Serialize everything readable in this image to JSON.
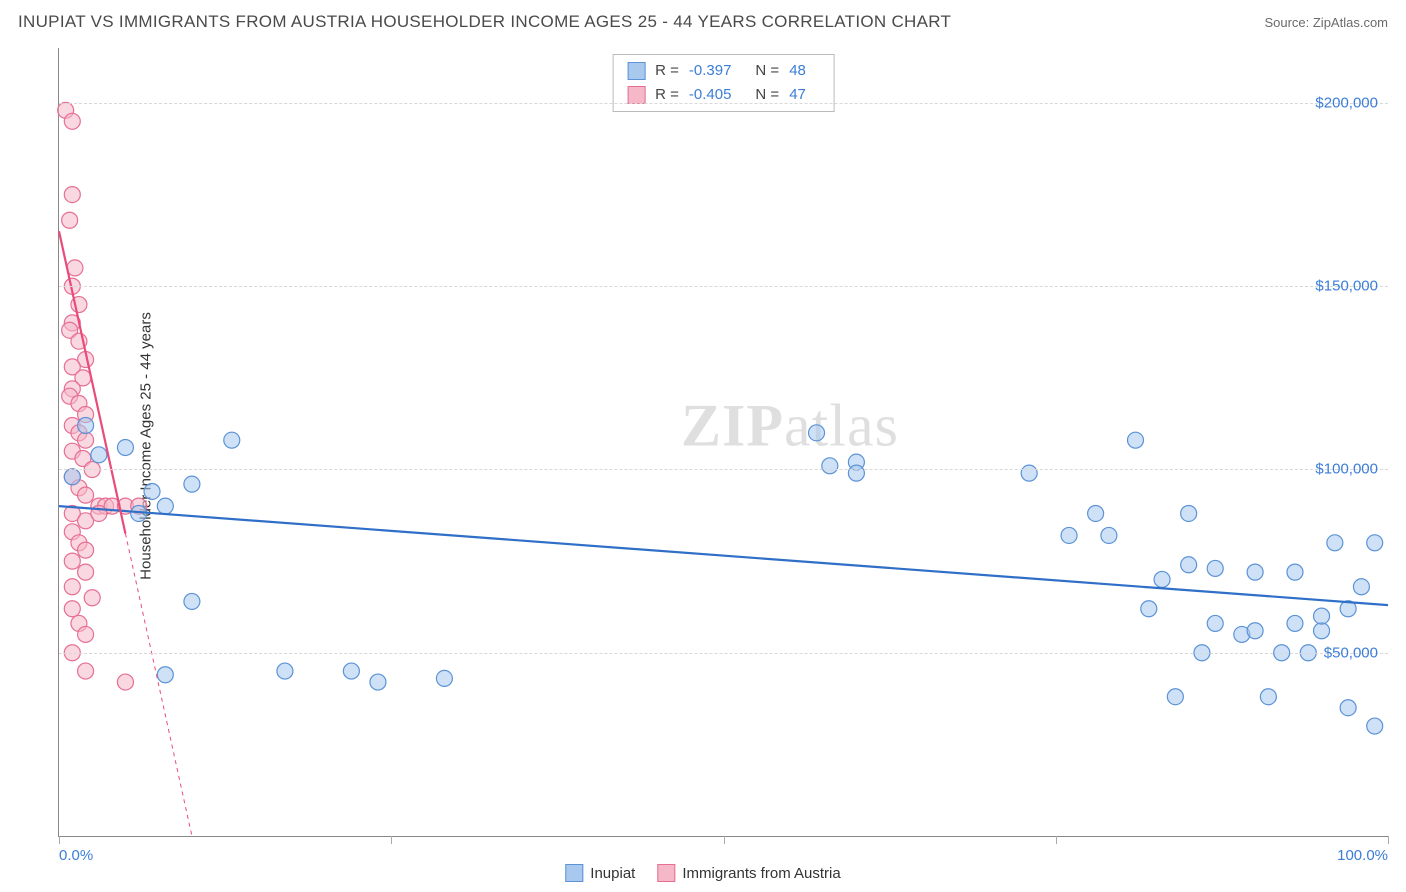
{
  "title": "INUPIAT VS IMMIGRANTS FROM AUSTRIA HOUSEHOLDER INCOME AGES 25 - 44 YEARS CORRELATION CHART",
  "source": "Source: ZipAtlas.com",
  "ylabel": "Householder Income Ages 25 - 44 years",
  "watermark_a": "ZIP",
  "watermark_b": "atlas",
  "chart": {
    "type": "scatter",
    "xlim": [
      0,
      100
    ],
    "ylim": [
      0,
      215000
    ],
    "x_ticks": [
      0,
      25,
      50,
      75,
      100
    ],
    "x_tick_labels": {
      "0": "0.0%",
      "100": "100.0%"
    },
    "y_gridlines": [
      50000,
      100000,
      150000,
      200000
    ],
    "y_tick_labels": {
      "50000": "$50,000",
      "100000": "$100,000",
      "150000": "$150,000",
      "200000": "$200,000"
    },
    "grid_color": "#d8d8d8",
    "background_color": "#ffffff",
    "axis_color": "#888888",
    "label_color": "#3b7dd8",
    "marker_radius": 8,
    "marker_opacity": 0.55,
    "series": [
      {
        "name": "Inupiat",
        "color_fill": "#a8c8ee",
        "color_stroke": "#5b93d6",
        "line_color": "#2f6fc7",
        "line_width": 2.2,
        "R": "-0.397",
        "N": "48",
        "trend": {
          "x1": 0,
          "y1": 90000,
          "x2": 100,
          "y2": 63000
        },
        "points": [
          [
            1,
            98000
          ],
          [
            2,
            112000
          ],
          [
            3,
            104000
          ],
          [
            5,
            106000
          ],
          [
            6,
            88000
          ],
          [
            7,
            94000
          ],
          [
            8,
            90000
          ],
          [
            10,
            96000
          ],
          [
            13,
            108000
          ],
          [
            8,
            44000
          ],
          [
            10,
            64000
          ],
          [
            17,
            45000
          ],
          [
            22,
            45000
          ],
          [
            24,
            42000
          ],
          [
            29,
            43000
          ],
          [
            57,
            110000
          ],
          [
            58,
            101000
          ],
          [
            60,
            102000
          ],
          [
            60,
            99000
          ],
          [
            73,
            99000
          ],
          [
            76,
            82000
          ],
          [
            78,
            88000
          ],
          [
            79,
            82000
          ],
          [
            81,
            108000
          ],
          [
            82,
            62000
          ],
          [
            83,
            70000
          ],
          [
            84,
            38000
          ],
          [
            85,
            88000
          ],
          [
            85,
            74000
          ],
          [
            86,
            50000
          ],
          [
            87,
            73000
          ],
          [
            87,
            58000
          ],
          [
            89,
            55000
          ],
          [
            90,
            56000
          ],
          [
            90,
            72000
          ],
          [
            91,
            38000
          ],
          [
            92,
            50000
          ],
          [
            93,
            58000
          ],
          [
            93,
            72000
          ],
          [
            94,
            50000
          ],
          [
            95,
            56000
          ],
          [
            95,
            60000
          ],
          [
            96,
            80000
          ],
          [
            97,
            62000
          ],
          [
            97,
            35000
          ],
          [
            98,
            68000
          ],
          [
            99,
            80000
          ],
          [
            99,
            30000
          ]
        ]
      },
      {
        "name": "Immigrants from Austria",
        "color_fill": "#f6b8c8",
        "color_stroke": "#e66f93",
        "line_color": "#e94b7a",
        "line_width": 2.2,
        "R": "-0.405",
        "N": "47",
        "trend": {
          "x1": 0,
          "y1": 165000,
          "x2": 10,
          "y2": 0
        },
        "points": [
          [
            0.5,
            198000
          ],
          [
            1,
            195000
          ],
          [
            1,
            175000
          ],
          [
            0.8,
            168000
          ],
          [
            1.2,
            155000
          ],
          [
            1,
            150000
          ],
          [
            1.5,
            145000
          ],
          [
            1,
            140000
          ],
          [
            0.8,
            138000
          ],
          [
            1.5,
            135000
          ],
          [
            2,
            130000
          ],
          [
            1,
            128000
          ],
          [
            1.8,
            125000
          ],
          [
            1,
            122000
          ],
          [
            0.8,
            120000
          ],
          [
            1.5,
            118000
          ],
          [
            2,
            115000
          ],
          [
            1,
            112000
          ],
          [
            1.5,
            110000
          ],
          [
            2,
            108000
          ],
          [
            1,
            105000
          ],
          [
            1.8,
            103000
          ],
          [
            2.5,
            100000
          ],
          [
            1,
            98000
          ],
          [
            1.5,
            95000
          ],
          [
            2,
            93000
          ],
          [
            3,
            90000
          ],
          [
            1,
            88000
          ],
          [
            2,
            86000
          ],
          [
            3.5,
            90000
          ],
          [
            4,
            90000
          ],
          [
            1,
            83000
          ],
          [
            1.5,
            80000
          ],
          [
            2,
            78000
          ],
          [
            3,
            88000
          ],
          [
            1,
            75000
          ],
          [
            2,
            72000
          ],
          [
            1,
            68000
          ],
          [
            2.5,
            65000
          ],
          [
            1,
            62000
          ],
          [
            5,
            90000
          ],
          [
            6,
            90000
          ],
          [
            1.5,
            58000
          ],
          [
            2,
            55000
          ],
          [
            1,
            50000
          ],
          [
            5,
            42000
          ],
          [
            2,
            45000
          ]
        ]
      }
    ]
  },
  "stats_box": {
    "rows": [
      {
        "swatch_fill": "#a8c8ee",
        "swatch_stroke": "#5b93d6",
        "R": "-0.397",
        "N": "48"
      },
      {
        "swatch_fill": "#f6b8c8",
        "swatch_stroke": "#e66f93",
        "R": "-0.405",
        "N": "47"
      }
    ],
    "label_R": "R =",
    "label_N": "N ="
  },
  "legend": {
    "items": [
      {
        "swatch_fill": "#a8c8ee",
        "swatch_stroke": "#5b93d6",
        "label": "Inupiat"
      },
      {
        "swatch_fill": "#f6b8c8",
        "swatch_stroke": "#e66f93",
        "label": "Immigrants from Austria"
      }
    ]
  }
}
